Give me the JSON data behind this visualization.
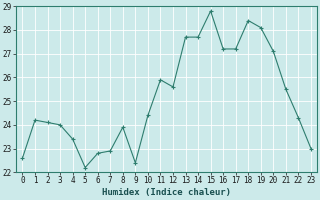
{
  "x": [
    0,
    1,
    2,
    3,
    4,
    5,
    6,
    7,
    8,
    9,
    10,
    11,
    12,
    13,
    14,
    15,
    16,
    17,
    18,
    19,
    20,
    21,
    22,
    23
  ],
  "y": [
    22.6,
    24.2,
    24.1,
    24.0,
    23.4,
    22.2,
    22.8,
    22.9,
    23.9,
    22.4,
    24.4,
    25.9,
    25.6,
    27.7,
    27.7,
    28.8,
    27.2,
    27.2,
    28.4,
    28.1,
    27.1,
    25.5,
    24.3,
    23.0
  ],
  "xlabel": "Humidex (Indice chaleur)",
  "line_color": "#2e7d6e",
  "marker": "+",
  "bg_color": "#cceaea",
  "grid_color": "#ffffff",
  "ylim_min": 22,
  "ylim_max": 29,
  "xlim_min": -0.5,
  "xlim_max": 23.5,
  "yticks": [
    22,
    23,
    24,
    25,
    26,
    27,
    28,
    29
  ],
  "xticks": [
    0,
    1,
    2,
    3,
    4,
    5,
    6,
    7,
    8,
    9,
    10,
    11,
    12,
    13,
    14,
    15,
    16,
    17,
    18,
    19,
    20,
    21,
    22,
    23
  ],
  "tick_fontsize": 5.5,
  "xlabel_fontsize": 6.5,
  "xlabel_fontweight": "bold"
}
